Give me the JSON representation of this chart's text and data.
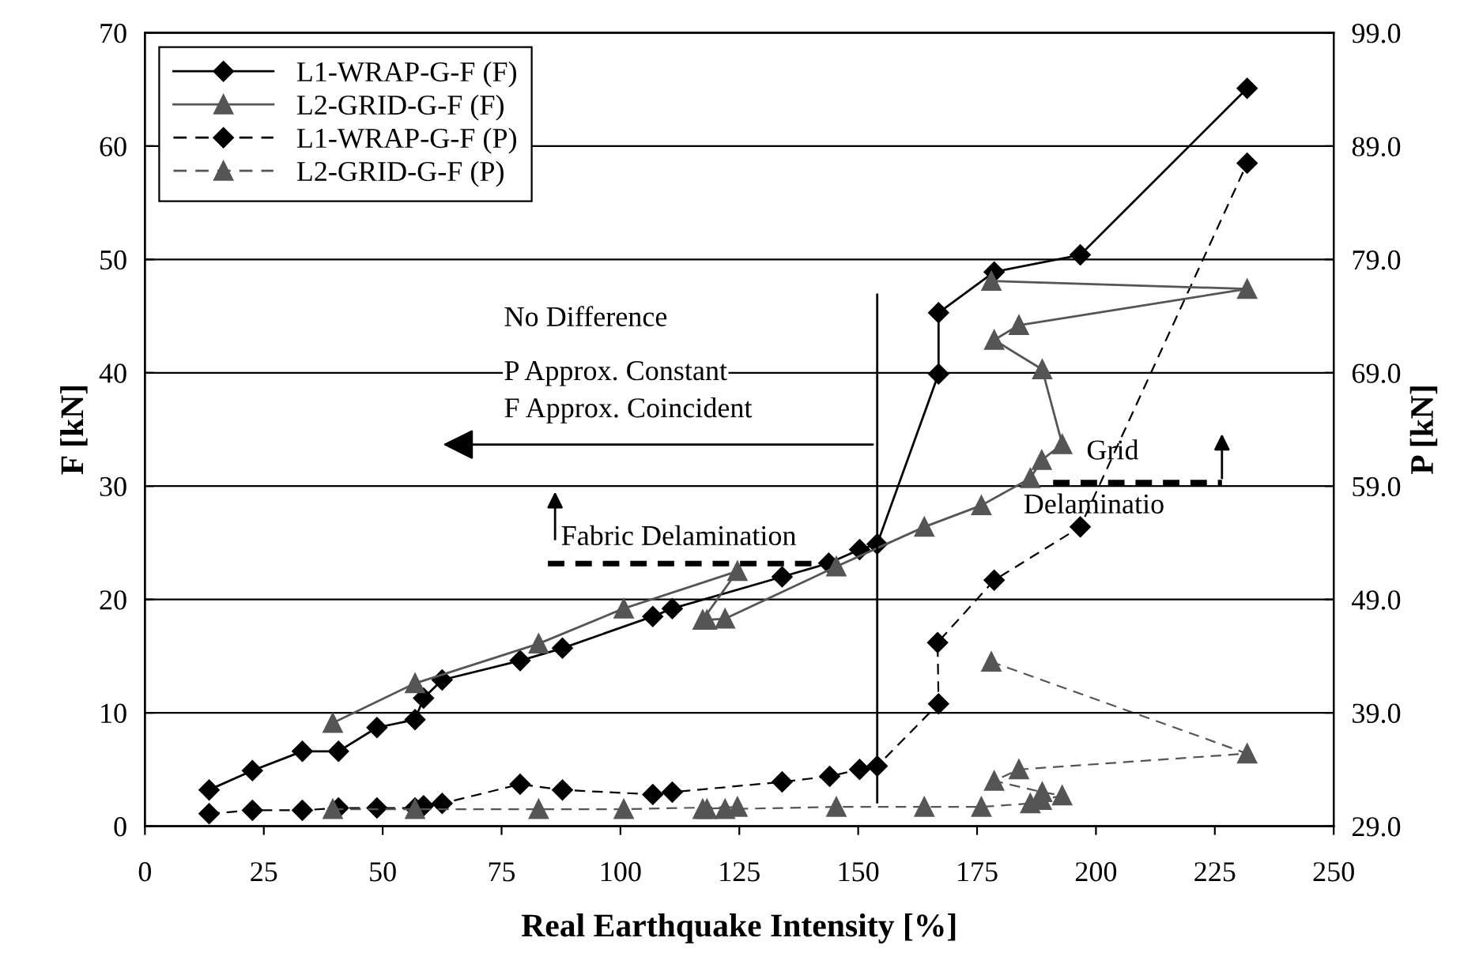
{
  "chart_data": {
    "type": "line",
    "xlabel": "Real Earthquake Intensity [%]",
    "ylabel": "F [kN]",
    "y2label": "P [kN]",
    "xlim": [
      0,
      250
    ],
    "xticks": [
      0,
      25,
      50,
      75,
      100,
      125,
      150,
      175,
      200,
      225,
      250
    ],
    "ylim": [
      0,
      70
    ],
    "yticks": [
      0,
      10,
      20,
      30,
      40,
      50,
      60,
      70
    ],
    "y2lim": [
      29,
      99
    ],
    "y2ticks": [
      {
        "value": 29,
        "label": "29.0"
      },
      {
        "value": 39,
        "label": "39.0"
      },
      {
        "value": 49,
        "label": "49.0"
      },
      {
        "value": 59,
        "label": "59.0"
      },
      {
        "value": 69,
        "label": "69.0"
      },
      {
        "value": 79,
        "label": "79.0"
      },
      {
        "value": 89,
        "label": "89.0"
      },
      {
        "value": 99,
        "label": "99.0"
      }
    ],
    "grid": "y",
    "legend": "top left",
    "series": [
      {
        "name": "L1-WRAP-G-F (F)",
        "color": "#000000",
        "marker": "diamond",
        "line_style": "solid",
        "x": [
          13.5,
          22.6,
          33.1,
          40.7,
          48.8,
          56.8,
          58.6,
          62.5,
          78.9,
          87.8,
          106.8,
          110.9,
          134.0,
          143.8,
          150.3,
          154.0,
          166.9,
          166.9,
          178.6,
          196.7,
          231.8
        ],
        "values": [
          3.2,
          4.9,
          6.6,
          6.6,
          8.7,
          9.4,
          11.3,
          12.9,
          14.6,
          15.7,
          18.5,
          19.2,
          22.0,
          23.2,
          24.4,
          24.9,
          39.9,
          45.3,
          48.9,
          50.4,
          65.1
        ]
      },
      {
        "name": "L2-GRID-G-F (F)",
        "color": "#555555",
        "marker": "triangle",
        "line_style": "solid",
        "x": [
          39.5,
          56.8,
          82.8,
          100.7,
          124.6,
          117.3,
          118.2,
          122.0,
          145.4,
          163.9,
          175.9,
          186.2,
          188.6,
          192.9,
          188.7,
          178.6,
          183.8,
          231.8,
          178.0
        ],
        "values": [
          9.1,
          12.6,
          16.1,
          19.2,
          22.5,
          18.2,
          18.2,
          18.3,
          22.9,
          26.4,
          28.3,
          30.7,
          32.3,
          33.7,
          40.3,
          42.9,
          44.2,
          47.4,
          48.1
        ]
      },
      {
        "name": "L1-WRAP-G-F (P)",
        "color": "#000000",
        "marker": "diamond",
        "line_style": "dashed",
        "axis": "y2",
        "x": [
          13.5,
          22.6,
          33.1,
          40.7,
          48.8,
          56.8,
          58.6,
          62.5,
          78.9,
          87.8,
          106.8,
          110.9,
          134.0,
          144.0,
          150.3,
          154.0,
          166.9,
          166.7,
          178.6,
          196.7,
          231.8
        ],
        "values": [
          30.1,
          30.4,
          30.4,
          30.6,
          30.6,
          30.6,
          30.8,
          31.0,
          32.7,
          32.2,
          31.8,
          32.0,
          32.9,
          33.4,
          34.0,
          34.3,
          39.8,
          45.2,
          50.7,
          55.4,
          87.5
        ]
      },
      {
        "name": "L2-GRID-G-F (P)",
        "color": "#555555",
        "marker": "triangle",
        "line_style": "dashed",
        "axis": "y2",
        "x": [
          39.5,
          56.8,
          82.8,
          100.7,
          124.6,
          117.3,
          118.2,
          122.0,
          145.4,
          163.9,
          175.9,
          186.2,
          188.6,
          192.9,
          188.7,
          178.6,
          183.8,
          231.8,
          178.0
        ],
        "values": [
          30.5,
          30.5,
          30.5,
          30.5,
          30.7,
          30.5,
          30.5,
          30.5,
          30.7,
          30.7,
          30.7,
          31.0,
          31.3,
          31.7,
          32.0,
          33.0,
          34.0,
          35.4,
          43.5
        ]
      }
    ],
    "ref_lines": [
      {
        "axis": "x",
        "value": 154,
        "color": "#000000"
      }
    ],
    "annotations": [
      "No Difference",
      "P Approx. Constant",
      "F Approx. Coincident",
      "Fabric Delamination",
      "Grid",
      "Delaminatio"
    ]
  }
}
